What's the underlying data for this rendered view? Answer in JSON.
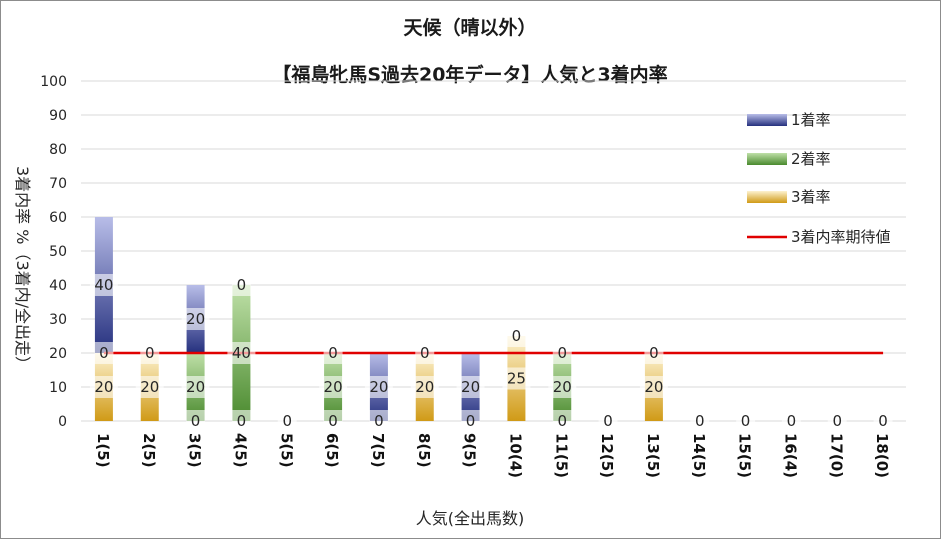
{
  "chart_data": {
    "type": "bar",
    "stacked": true,
    "title": "天候（晴以外）",
    "subtitle": "【福島牝馬S過去20年データ】人気と3着内率",
    "xlabel": "人気(全出馬数)",
    "ylabel": "3着内率 %（3着内/全出走）",
    "ylim": [
      0,
      100
    ],
    "yticks": [
      0,
      10,
      20,
      30,
      40,
      50,
      60,
      70,
      80,
      90,
      100
    ],
    "grid": true,
    "legend_position": "right",
    "categories": [
      "1(5)",
      "2(5)",
      "3(5)",
      "4(5)",
      "5(5)",
      "6(5)",
      "7(5)",
      "8(5)",
      "9(5)",
      "10(4)",
      "11(5)",
      "12(5)",
      "13(5)",
      "14(5)",
      "15(5)",
      "16(4)",
      "17(0)",
      "18(0)"
    ],
    "series": [
      {
        "name": "3着率",
        "color": "#d4a017",
        "values": [
          20,
          20,
          0,
          0,
          0,
          0,
          0,
          20,
          0,
          25,
          0,
          0,
          20,
          0,
          0,
          0,
          0,
          0
        ]
      },
      {
        "name": "2着率",
        "color": "#5a9a3c",
        "values": [
          0,
          0,
          20,
          40,
          0,
          20,
          0,
          0,
          0,
          0,
          20,
          0,
          0,
          0,
          0,
          0,
          0,
          0
        ]
      },
      {
        "name": "1着率",
        "color": "#2f3a8f",
        "values": [
          40,
          0,
          20,
          0,
          0,
          0,
          20,
          0,
          20,
          0,
          0,
          0,
          0,
          0,
          0,
          0,
          0,
          0
        ]
      }
    ],
    "labels": {
      "3着率": [
        "20",
        "20",
        "",
        "",
        "",
        "",
        "",
        "20",
        "",
        "25",
        "",
        "",
        "20",
        "",
        "",
        "",
        "",
        ""
      ],
      "2着率": [
        "0",
        "0",
        "20",
        "40",
        "",
        "20",
        "",
        "0",
        "",
        "0",
        "20",
        "",
        "0",
        "",
        "",
        "",
        "",
        ""
      ],
      "1着率": [
        "40",
        "",
        "20",
        "0",
        "",
        "0",
        "20",
        "",
        "20",
        "",
        "0",
        "",
        "",
        "",
        "",
        "",
        "",
        ""
      ],
      "base": [
        "",
        "",
        "0",
        "0",
        "0",
        "0",
        "0",
        "",
        "0",
        "",
        "0",
        "0",
        "",
        "0",
        "0",
        "0",
        "0",
        "0"
      ]
    },
    "reference_line": {
      "name": "3着内率期待値",
      "value": 20,
      "color": "#e00000"
    }
  }
}
